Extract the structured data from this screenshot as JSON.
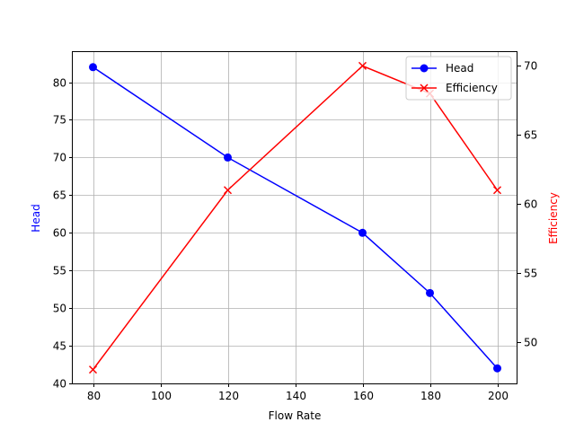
{
  "chart_data": {
    "type": "line",
    "title": "",
    "xlabel": "Flow Rate",
    "ylabel": "Head",
    "y2label": "Efficiency",
    "x": [
      80,
      120,
      160,
      180,
      200
    ],
    "xticks": [
      80,
      100,
      120,
      140,
      160,
      180,
      200
    ],
    "xlim": [
      74,
      206
    ],
    "ylim": [
      40,
      84
    ],
    "yticks": [
      40,
      45,
      50,
      55,
      60,
      65,
      70,
      75,
      80
    ],
    "y2lim": [
      47,
      71
    ],
    "y2ticks": [
      50,
      55,
      60,
      65,
      70
    ],
    "grid": true,
    "legend_position": "upper right",
    "series": [
      {
        "name": "Head",
        "axis": "left",
        "color": "#0000ff",
        "marker": "circle",
        "values": [
          82,
          70,
          60,
          52,
          42
        ]
      },
      {
        "name": "Efficiency",
        "axis": "right",
        "color": "#ff0000",
        "marker": "x",
        "values": [
          48,
          61,
          70,
          68,
          61
        ]
      }
    ]
  }
}
